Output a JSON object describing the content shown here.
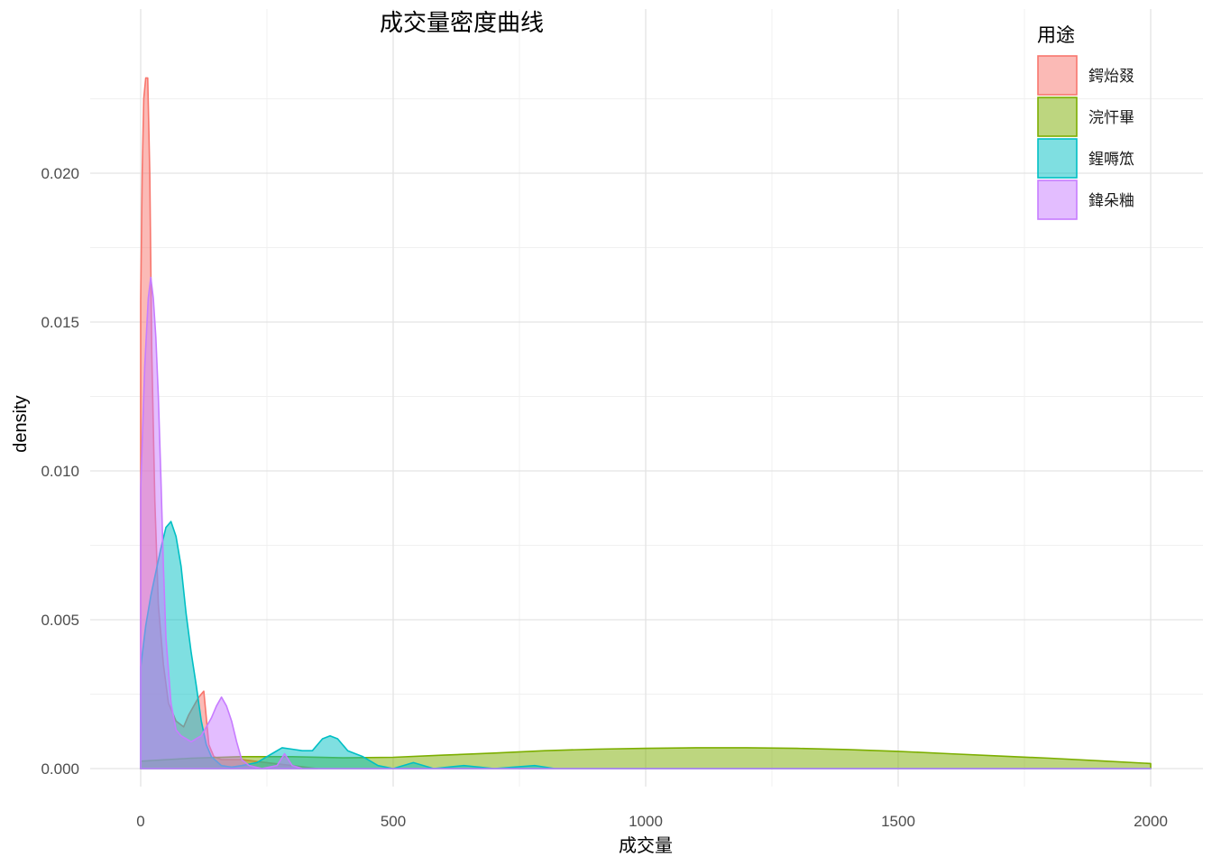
{
  "chart_data": {
    "type": "area",
    "title": "成交量密度曲线",
    "xlabel": "成交量",
    "ylabel": "density",
    "xlim": [
      0,
      2000
    ],
    "ylim": [
      0,
      0.0232
    ],
    "x_ticks": [
      0,
      500,
      1000,
      1500,
      2000
    ],
    "x_tick_labels": [
      "0",
      "500",
      "1000",
      "1500",
      "2000"
    ],
    "y_ticks": [
      0.0,
      0.005,
      0.01,
      0.015,
      0.02
    ],
    "y_tick_labels": [
      "0.000",
      "0.005",
      "0.010",
      "0.015",
      "0.020"
    ],
    "grid": true,
    "legend_title": "用途",
    "legend_position": "top-right",
    "series": [
      {
        "name": "鍔炲叕",
        "color": "#F8766D",
        "points": [
          [
            0,
            0.0157
          ],
          [
            3,
            0.02
          ],
          [
            6,
            0.0225
          ],
          [
            10,
            0.0232
          ],
          [
            14,
            0.0232
          ],
          [
            18,
            0.02
          ],
          [
            22,
            0.014
          ],
          [
            28,
            0.009
          ],
          [
            35,
            0.0055
          ],
          [
            45,
            0.0035
          ],
          [
            55,
            0.0022
          ],
          [
            70,
            0.0016
          ],
          [
            85,
            0.0014
          ],
          [
            95,
            0.0018
          ],
          [
            105,
            0.0021
          ],
          [
            115,
            0.0024
          ],
          [
            125,
            0.0026
          ],
          [
            135,
            0.0008
          ],
          [
            145,
            0.0004
          ],
          [
            160,
            0.0003
          ],
          [
            200,
            0.0003
          ],
          [
            250,
            0.0002
          ],
          [
            300,
            0.0001
          ],
          [
            350,
            0.0
          ]
        ]
      },
      {
        "name": "浣忓畢",
        "color": "#7CAE00",
        "points": [
          [
            0,
            0.00025
          ],
          [
            100,
            0.00035
          ],
          [
            200,
            0.0004
          ],
          [
            300,
            0.0004
          ],
          [
            400,
            0.00036
          ],
          [
            500,
            0.00038
          ],
          [
            600,
            0.00045
          ],
          [
            700,
            0.00052
          ],
          [
            800,
            0.0006
          ],
          [
            900,
            0.00065
          ],
          [
            1000,
            0.00068
          ],
          [
            1100,
            0.0007
          ],
          [
            1200,
            0.0007
          ],
          [
            1300,
            0.00068
          ],
          [
            1400,
            0.00064
          ],
          [
            1500,
            0.00058
          ],
          [
            1600,
            0.0005
          ],
          [
            1700,
            0.00042
          ],
          [
            1800,
            0.00035
          ],
          [
            1900,
            0.00026
          ],
          [
            2000,
            0.00017
          ]
        ]
      },
      {
        "name": "鍟嗕笟",
        "color": "#00BFC4",
        "points": [
          [
            0,
            0.0034
          ],
          [
            10,
            0.0048
          ],
          [
            20,
            0.0058
          ],
          [
            30,
            0.0066
          ],
          [
            40,
            0.0074
          ],
          [
            50,
            0.0081
          ],
          [
            60,
            0.0083
          ],
          [
            70,
            0.0078
          ],
          [
            80,
            0.0068
          ],
          [
            90,
            0.0052
          ],
          [
            100,
            0.0039
          ],
          [
            110,
            0.0028
          ],
          [
            120,
            0.0016
          ],
          [
            130,
            0.0008
          ],
          [
            140,
            0.0004
          ],
          [
            160,
            0.0001
          ],
          [
            180,
            5e-05
          ],
          [
            200,
            0.0001
          ],
          [
            230,
            0.0002
          ],
          [
            260,
            0.0005
          ],
          [
            280,
            0.0007
          ],
          [
            300,
            0.00065
          ],
          [
            320,
            0.0006
          ],
          [
            340,
            0.0006
          ],
          [
            360,
            0.001
          ],
          [
            375,
            0.0011
          ],
          [
            390,
            0.001
          ],
          [
            410,
            0.0006
          ],
          [
            440,
            0.0004
          ],
          [
            470,
            0.0001
          ],
          [
            500,
            0.0
          ],
          [
            540,
            0.0002
          ],
          [
            580,
            0.0
          ],
          [
            640,
            0.0001
          ],
          [
            700,
            0.0
          ],
          [
            780,
            0.0001
          ],
          [
            820,
            0.0
          ],
          [
            2000,
            0.0
          ]
        ]
      },
      {
        "name": "鍏朵粬",
        "color": "#C77CFF",
        "points": [
          [
            0,
            0.0094
          ],
          [
            8,
            0.0135
          ],
          [
            15,
            0.0158
          ],
          [
            20,
            0.0165
          ],
          [
            25,
            0.0158
          ],
          [
            30,
            0.0145
          ],
          [
            35,
            0.0125
          ],
          [
            40,
            0.0098
          ],
          [
            45,
            0.0068
          ],
          [
            50,
            0.0044
          ],
          [
            60,
            0.0022
          ],
          [
            70,
            0.0013
          ],
          [
            80,
            0.0011
          ],
          [
            90,
            0.001
          ],
          [
            100,
            0.0009
          ],
          [
            110,
            0.001
          ],
          [
            120,
            0.0011
          ],
          [
            130,
            0.0014
          ],
          [
            140,
            0.0017
          ],
          [
            150,
            0.0021
          ],
          [
            160,
            0.0024
          ],
          [
            170,
            0.0021
          ],
          [
            180,
            0.0016
          ],
          [
            190,
            0.0009
          ],
          [
            200,
            0.0003
          ],
          [
            215,
            0.0001
          ],
          [
            240,
            0.0
          ],
          [
            270,
            0.0001
          ],
          [
            285,
            0.0005
          ],
          [
            300,
            0.0001
          ],
          [
            320,
            0.0
          ],
          [
            2000,
            0.0
          ]
        ]
      }
    ]
  }
}
